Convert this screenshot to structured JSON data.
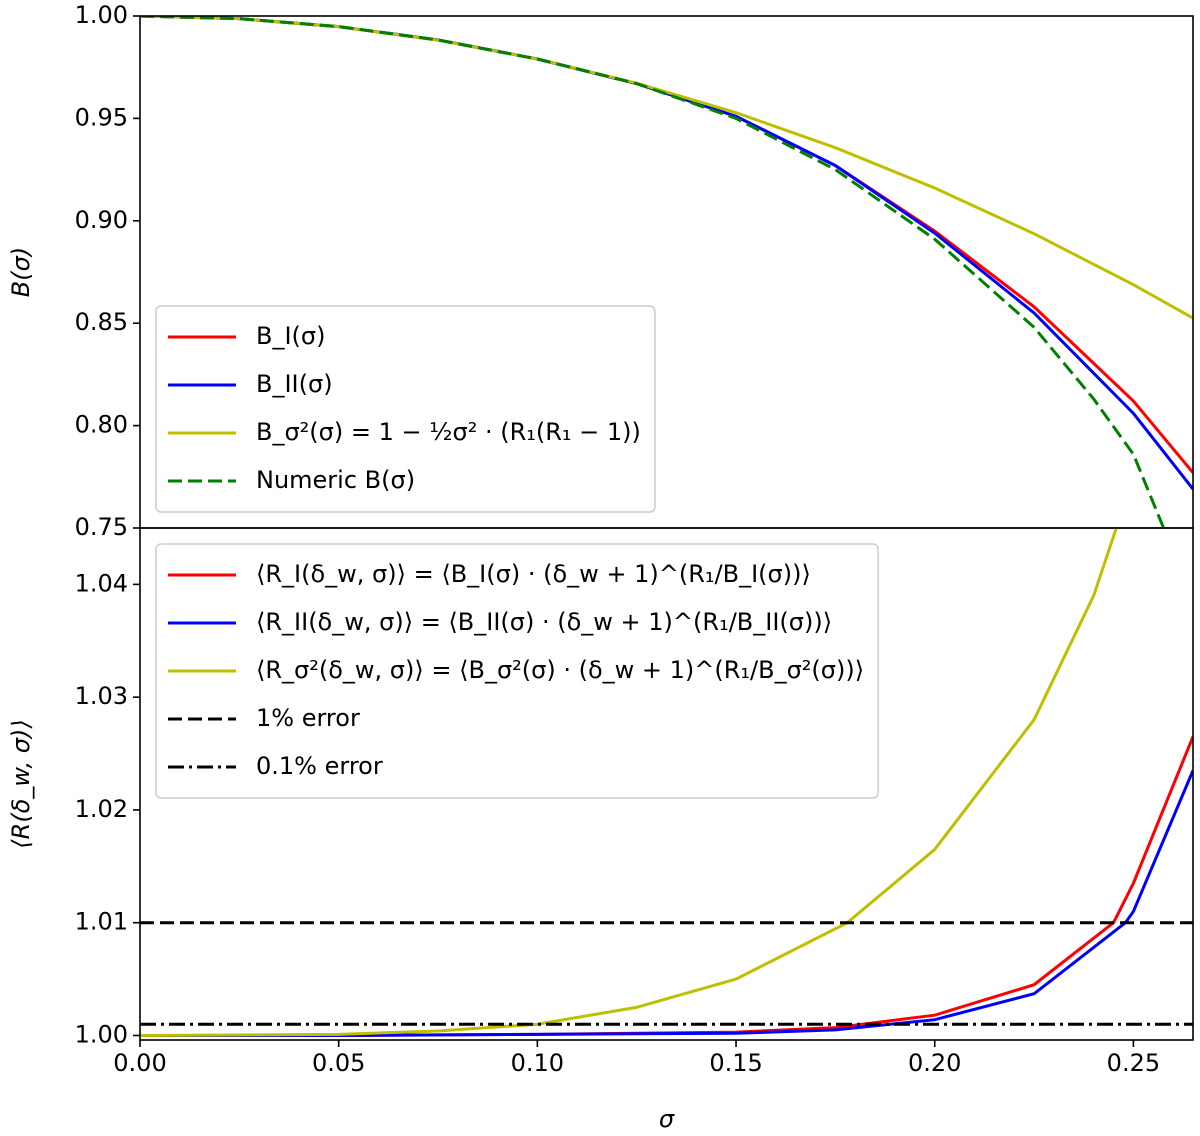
{
  "chart_data": [
    {
      "type": "line",
      "ylabel": "B(σ)",
      "xlim": [
        0,
        0.265
      ],
      "ylim": [
        0.75,
        1.0
      ],
      "yticks": [
        0.75,
        {
          "value": 0.8,
          "label": "0.80"
        },
        0.85,
        {
          "value": 0.9,
          "label": "0.90"
        },
        0.95,
        {
          "value": 1.0,
          "label": "1.00"
        }
      ],
      "legend": "lower left",
      "series": [
        {
          "name": "B_I(σ)",
          "color": "#ff0000",
          "dash": "solid",
          "x": [
            0,
            0.025,
            0.05,
            0.075,
            0.1,
            0.125,
            0.15,
            0.175,
            0.2,
            0.225,
            0.25,
            0.265
          ],
          "values": [
            1.0,
            0.9987,
            0.9948,
            0.9883,
            0.979,
            0.967,
            0.951,
            0.927,
            0.895,
            0.858,
            0.812,
            0.777
          ]
        },
        {
          "name": "B_II(σ)",
          "color": "#0000ff",
          "dash": "solid",
          "x": [
            0,
            0.025,
            0.05,
            0.075,
            0.1,
            0.125,
            0.15,
            0.175,
            0.2,
            0.225,
            0.25,
            0.265
          ],
          "values": [
            1.0,
            0.9987,
            0.9948,
            0.9883,
            0.979,
            0.967,
            0.951,
            0.927,
            0.894,
            0.855,
            0.806,
            0.769
          ]
        },
        {
          "name": "B_σ²(σ) = 1 − ½σ² · (R₁(R₁ − 1))",
          "color": "#bfbf00",
          "dash": "solid",
          "x": [
            0,
            0.025,
            0.05,
            0.075,
            0.1,
            0.125,
            0.15,
            0.175,
            0.2,
            0.225,
            0.25,
            0.265
          ],
          "values": [
            1.0,
            0.9987,
            0.9948,
            0.9882,
            0.979,
            0.9672,
            0.9528,
            0.9357,
            0.916,
            0.8937,
            0.8688,
            0.8525
          ]
        },
        {
          "name": "Numeric B(σ)",
          "color": "#008000",
          "dash": "dashed",
          "x": [
            0,
            0.025,
            0.05,
            0.075,
            0.1,
            0.125,
            0.15,
            0.175,
            0.2,
            0.225,
            0.24,
            0.25,
            0.2576
          ],
          "values": [
            1.0,
            0.9987,
            0.9948,
            0.9883,
            0.979,
            0.967,
            0.95,
            0.925,
            0.891,
            0.848,
            0.813,
            0.786,
            0.75
          ]
        }
      ]
    },
    {
      "type": "line",
      "xlabel": "σ",
      "ylabel": "⟨R(δ_w, σ)⟩",
      "xlim": [
        0,
        0.265
      ],
      "ylim": [
        0.9996,
        1.045
      ],
      "xticks": [
        {
          "value": 0,
          "label": "0.00"
        },
        0.05,
        {
          "value": 0.1,
          "label": "0.10"
        },
        0.15,
        {
          "value": 0.2,
          "label": "0.20"
        },
        0.25
      ],
      "yticks": [
        {
          "value": 1.0,
          "label": "1.00"
        },
        1.01,
        1.02,
        1.03,
        1.04
      ],
      "legend": "upper left",
      "series": [
        {
          "name": "⟨R_I(δ_w, σ)⟩ = ⟨B_I(σ) · (δ_w + 1)^(R₁/B_I(σ))⟩",
          "color": "#ff0000",
          "dash": "solid",
          "x": [
            0,
            0.05,
            0.1,
            0.15,
            0.175,
            0.2,
            0.225,
            0.245,
            0.25,
            0.265
          ],
          "values": [
            1.0,
            1.0,
            1.0001,
            1.0003,
            1.0007,
            1.0018,
            1.0045,
            1.01,
            1.0135,
            1.0265
          ]
        },
        {
          "name": "⟨R_II(δ_w, σ)⟩ = ⟨B_II(σ) · (δ_w + 1)^(R₁/B_II(σ))⟩",
          "color": "#0000ff",
          "dash": "solid",
          "x": [
            0,
            0.05,
            0.1,
            0.15,
            0.175,
            0.2,
            0.225,
            0.248,
            0.25,
            0.265
          ],
          "values": [
            1.0,
            1.0,
            1.0001,
            1.0002,
            1.0005,
            1.0014,
            1.0037,
            1.01,
            1.011,
            1.0235
          ]
        },
        {
          "name": "⟨R_σ²(δ_w, σ)⟩ = ⟨B_σ²(σ) · (δ_w + 1)^(R₁/B_σ²(σ))⟩",
          "color": "#bfbf00",
          "dash": "solid",
          "x": [
            0,
            0.05,
            0.075,
            0.1,
            0.125,
            0.15,
            0.178,
            0.2,
            0.225,
            0.24,
            0.2457
          ],
          "values": [
            1.0,
            1.0001,
            1.0004,
            1.001,
            1.0025,
            1.005,
            1.01,
            1.0165,
            1.028,
            1.039,
            1.045
          ]
        },
        {
          "name": "1% error",
          "color": "#000000",
          "dash": "dashed",
          "x": [
            0,
            0.265
          ],
          "values": [
            1.01,
            1.01
          ]
        },
        {
          "name": "0.1% error",
          "color": "#000000",
          "dash": "dashdot",
          "x": [
            0,
            0.265
          ],
          "values": [
            1.001,
            1.001
          ]
        }
      ]
    }
  ]
}
